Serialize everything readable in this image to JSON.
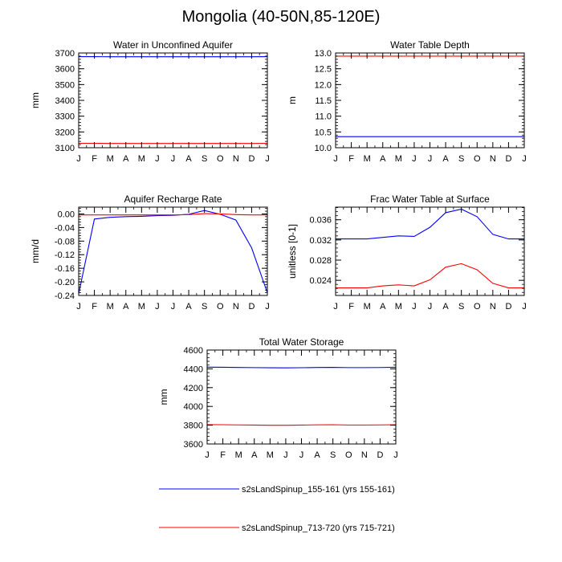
{
  "figure": {
    "title": "Mongolia (40-50N,85-120E)"
  },
  "legend": [
    {
      "label": "s2sLandSpinup_155-161 (yrs 155-161)",
      "color": "#0000ff"
    },
    {
      "label": "s2sLandSpinup_713-720 (yrs 715-721)",
      "color": "#ff0000"
    }
  ],
  "chart_data": [
    {
      "type": "line",
      "title": "Water in Unconfined Aquifer",
      "ylabel": "mm",
      "categories": [
        "J",
        "F",
        "M",
        "A",
        "M",
        "J",
        "J",
        "A",
        "S",
        "O",
        "N",
        "D",
        "J"
      ],
      "ylim": [
        3100,
        3700
      ],
      "yticks": [
        3100,
        3200,
        3300,
        3400,
        3500,
        3600,
        3700
      ],
      "ytick_labels": [
        "3100",
        "3200",
        "3300",
        "3400",
        "3500",
        "3600",
        "3700"
      ],
      "series": [
        {
          "name": "s2sLandSpinup_155-161 (yrs 155-161)",
          "color": "#0000ff",
          "values": [
            3677,
            3677,
            3676,
            3676,
            3676,
            3676,
            3676,
            3676,
            3676,
            3676,
            3676,
            3676,
            3677
          ]
        },
        {
          "name": "s2sLandSpinup_713-720 (yrs 715-721)",
          "color": "#ff0000",
          "values": [
            3128,
            3128,
            3127,
            3127,
            3127,
            3127,
            3127,
            3127,
            3127,
            3127,
            3127,
            3127,
            3128
          ]
        }
      ]
    },
    {
      "type": "line",
      "title": "Water Table Depth",
      "ylabel": "m",
      "categories": [
        "J",
        "F",
        "M",
        "A",
        "M",
        "J",
        "J",
        "A",
        "S",
        "O",
        "N",
        "D",
        "J"
      ],
      "ylim": [
        10.0,
        13.0
      ],
      "yticks": [
        10.0,
        10.5,
        11.0,
        11.5,
        12.0,
        12.5,
        13.0
      ],
      "ytick_labels": [
        "10.0",
        "10.5",
        "11.0",
        "11.5",
        "12.0",
        "12.5",
        "13.0"
      ],
      "series": [
        {
          "name": "s2sLandSpinup_155-161 (yrs 155-161)",
          "color": "#0000ff",
          "values": [
            10.35,
            10.35,
            10.35,
            10.35,
            10.35,
            10.35,
            10.35,
            10.35,
            10.35,
            10.35,
            10.35,
            10.35,
            10.35
          ]
        },
        {
          "name": "s2sLandSpinup_713-720 (yrs 715-721)",
          "color": "#ff0000",
          "values": [
            12.9,
            12.9,
            12.9,
            12.9,
            12.9,
            12.9,
            12.9,
            12.9,
            12.9,
            12.9,
            12.9,
            12.9,
            12.9
          ]
        }
      ]
    },
    {
      "type": "line",
      "title": "Aquifer Recharge Rate",
      "ylabel": "mm/d",
      "categories": [
        "J",
        "F",
        "M",
        "A",
        "M",
        "J",
        "J",
        "A",
        "S",
        "O",
        "N",
        "D",
        "J"
      ],
      "ylim": [
        -0.24,
        0.02
      ],
      "yticks": [
        -0.24,
        -0.2,
        -0.16,
        -0.12,
        -0.08,
        -0.04,
        0.0
      ],
      "ytick_labels": [
        "-0.24",
        "-0.20",
        "-0.16",
        "-0.12",
        "-0.08",
        "-0.04",
        "0.00"
      ],
      "series": [
        {
          "name": "s2sLandSpinup_155-161 (yrs 155-161)",
          "color": "#0000ff",
          "values": [
            -0.235,
            -0.015,
            -0.01,
            -0.008,
            -0.007,
            -0.005,
            -0.004,
            -0.001,
            0.01,
            -0.001,
            -0.018,
            -0.1,
            -0.232
          ]
        },
        {
          "name": "s2sLandSpinup_713-720 (yrs 715-721)",
          "color": "#ff0000",
          "values": [
            -0.003,
            -0.003,
            -0.003,
            -0.003,
            -0.003,
            -0.003,
            -0.003,
            -0.002,
            0.001,
            0.0,
            -0.002,
            -0.003,
            -0.003
          ]
        }
      ]
    },
    {
      "type": "line",
      "title": "Frac Water Table at Surface",
      "ylabel": "unitless [0-1]",
      "categories": [
        "J",
        "F",
        "M",
        "A",
        "M",
        "J",
        "J",
        "A",
        "S",
        "O",
        "N",
        "D",
        "J"
      ],
      "ylim": [
        0.021,
        0.0385
      ],
      "yticks": [
        0.024,
        0.028,
        0.032,
        0.036
      ],
      "ytick_labels": [
        "0.024",
        "0.028",
        "0.032",
        "0.036"
      ],
      "series": [
        {
          "name": "s2sLandSpinup_155-161 (yrs 155-161)",
          "color": "#0000ff",
          "values": [
            0.0322,
            0.0322,
            0.0322,
            0.0325,
            0.0328,
            0.0327,
            0.0345,
            0.0374,
            0.0381,
            0.0366,
            0.0331,
            0.0322,
            0.0322
          ]
        },
        {
          "name": "s2sLandSpinup_713-720 (yrs 715-721)",
          "color": "#ff0000",
          "values": [
            0.0225,
            0.0225,
            0.0225,
            0.0229,
            0.0231,
            0.0229,
            0.0241,
            0.0266,
            0.0273,
            0.0261,
            0.0234,
            0.0225,
            0.0225
          ]
        }
      ]
    },
    {
      "type": "line",
      "title": "Total Water Storage",
      "ylabel": "mm",
      "categories": [
        "J",
        "F",
        "M",
        "A",
        "M",
        "J",
        "J",
        "A",
        "S",
        "O",
        "N",
        "D",
        "J"
      ],
      "ylim": [
        3600,
        4600
      ],
      "yticks": [
        3600,
        3800,
        4000,
        4200,
        4400,
        4600
      ],
      "ytick_labels": [
        "3600",
        "3800",
        "4000",
        "4200",
        "4400",
        "4600"
      ],
      "series": [
        {
          "name": "s2sLandSpinup_155-161 (yrs 155-161)",
          "color": "#0000ff",
          "values": [
            4418,
            4417,
            4415,
            4413,
            4411,
            4410,
            4412,
            4415,
            4416,
            4413,
            4413,
            4414,
            4417
          ]
        },
        {
          "name": "s2sLandSpinup_713-720 (yrs 715-721)",
          "color": "#ff0000",
          "values": [
            3806,
            3805,
            3803,
            3801,
            3799,
            3799,
            3801,
            3804,
            3805,
            3802,
            3802,
            3803,
            3805
          ]
        }
      ]
    }
  ]
}
